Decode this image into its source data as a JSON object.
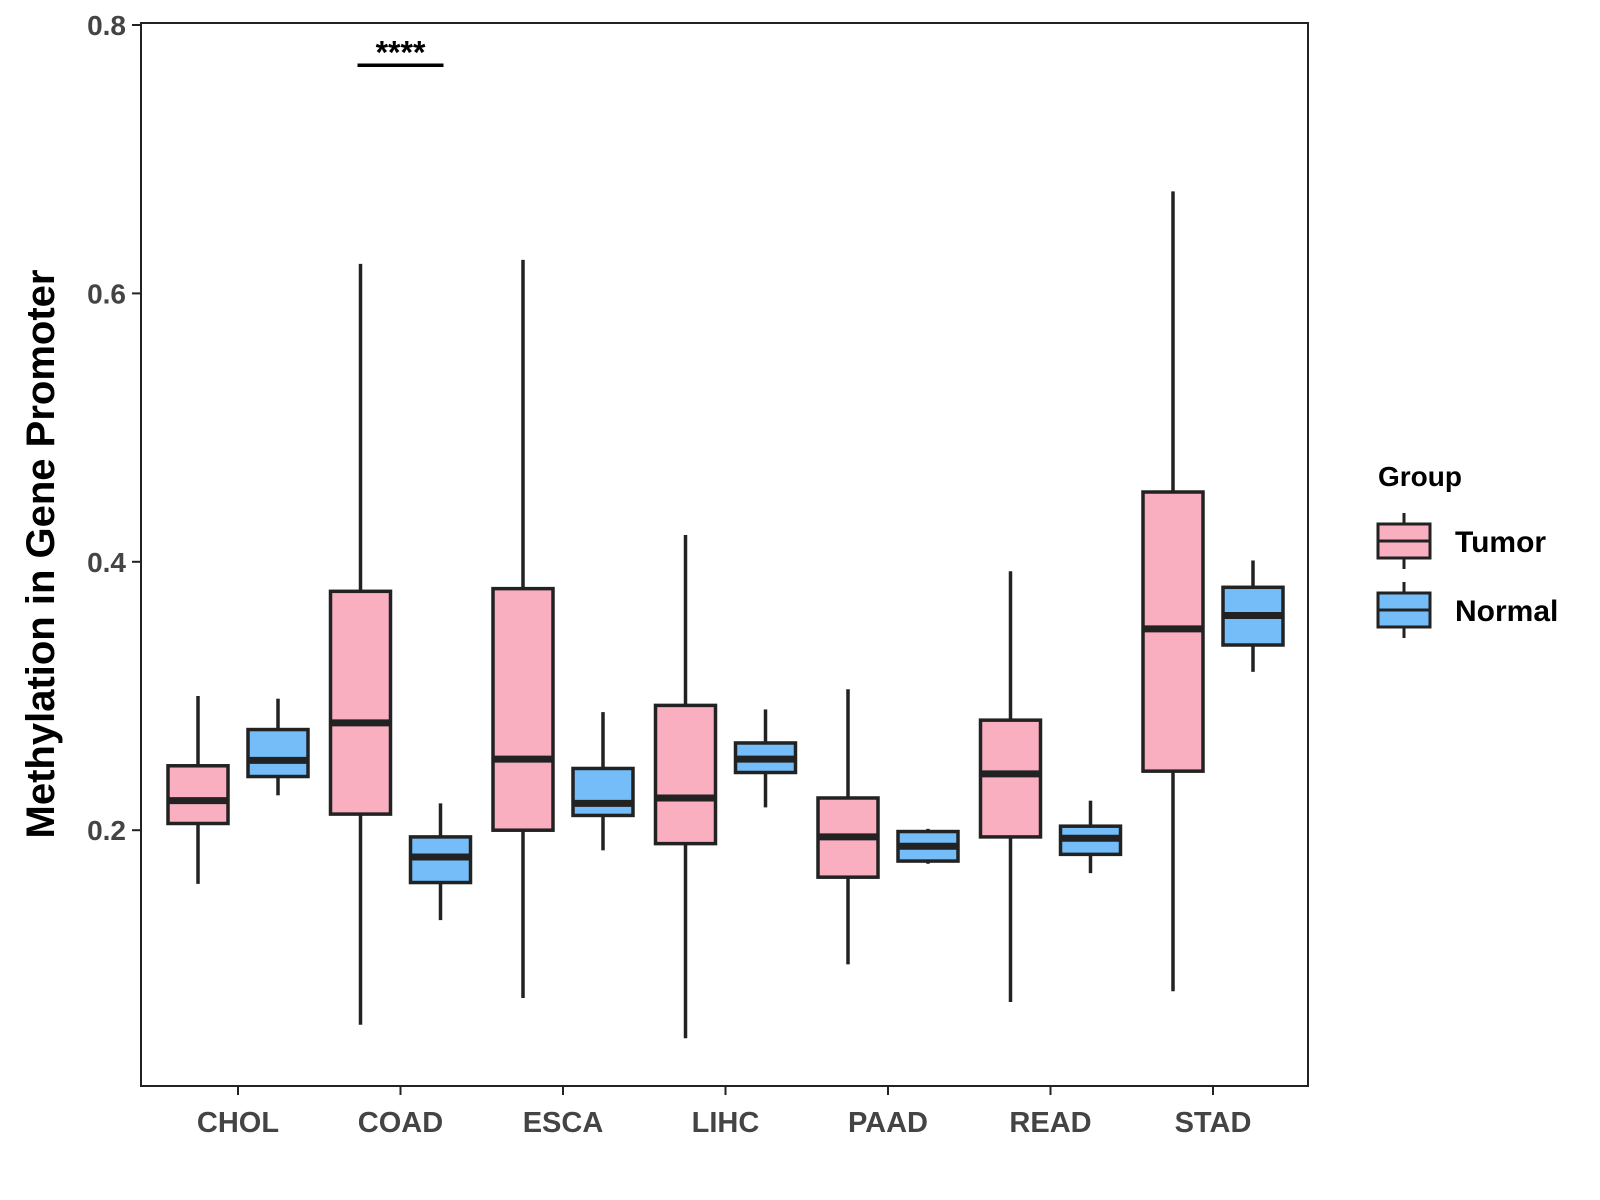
{
  "chart_data": {
    "type": "boxplot",
    "title": "",
    "xlabel": "",
    "ylabel": "Methylation in Gene Promoter",
    "ylim": [
      0.0,
      0.8
    ],
    "yticks": [
      "0.2",
      "0.4",
      "0.6",
      "0.8"
    ],
    "ytick_values": [
      0.2,
      0.4,
      0.6,
      0.8
    ],
    "grid": false,
    "legend": {
      "title": "Group",
      "position": "right",
      "entries": [
        {
          "name": "Tumor",
          "color": "#FAAFC1"
        },
        {
          "name": "Normal",
          "color": "#74BDF8"
        }
      ]
    },
    "categories": [
      "CHOL",
      "COAD",
      "ESCA",
      "LIHC",
      "PAAD",
      "READ",
      "STAD"
    ],
    "series": [
      {
        "name": "Tumor",
        "color": "#FAAFC1",
        "boxes": [
          {
            "min": 0.16,
            "q1": 0.205,
            "median": 0.222,
            "q3": 0.248,
            "max": 0.3
          },
          {
            "min": 0.055,
            "q1": 0.212,
            "median": 0.28,
            "q3": 0.378,
            "max": 0.622
          },
          {
            "min": 0.075,
            "q1": 0.2,
            "median": 0.253,
            "q3": 0.38,
            "max": 0.625
          },
          {
            "min": 0.045,
            "q1": 0.19,
            "median": 0.224,
            "q3": 0.293,
            "max": 0.42
          },
          {
            "min": 0.1,
            "q1": 0.165,
            "median": 0.195,
            "q3": 0.224,
            "max": 0.305
          },
          {
            "min": 0.072,
            "q1": 0.195,
            "median": 0.242,
            "q3": 0.282,
            "max": 0.393
          },
          {
            "min": 0.08,
            "q1": 0.244,
            "median": 0.35,
            "q3": 0.452,
            "max": 0.676
          }
        ]
      },
      {
        "name": "Normal",
        "color": "#74BDF8",
        "boxes": [
          {
            "min": 0.226,
            "q1": 0.24,
            "median": 0.252,
            "q3": 0.275,
            "max": 0.298
          },
          {
            "min": 0.133,
            "q1": 0.161,
            "median": 0.18,
            "q3": 0.195,
            "max": 0.22
          },
          {
            "min": 0.185,
            "q1": 0.211,
            "median": 0.22,
            "q3": 0.246,
            "max": 0.288
          },
          {
            "min": 0.217,
            "q1": 0.243,
            "median": 0.253,
            "q3": 0.265,
            "max": 0.29
          },
          {
            "min": 0.175,
            "q1": 0.177,
            "median": 0.188,
            "q3": 0.199,
            "max": 0.201
          },
          {
            "min": 0.168,
            "q1": 0.182,
            "median": 0.194,
            "q3": 0.203,
            "max": 0.222
          },
          {
            "min": 0.318,
            "q1": 0.338,
            "median": 0.36,
            "q3": 0.381,
            "max": 0.401
          }
        ]
      }
    ],
    "annotations": [
      {
        "category": "COAD",
        "text": "****",
        "y": 0.77
      }
    ]
  }
}
